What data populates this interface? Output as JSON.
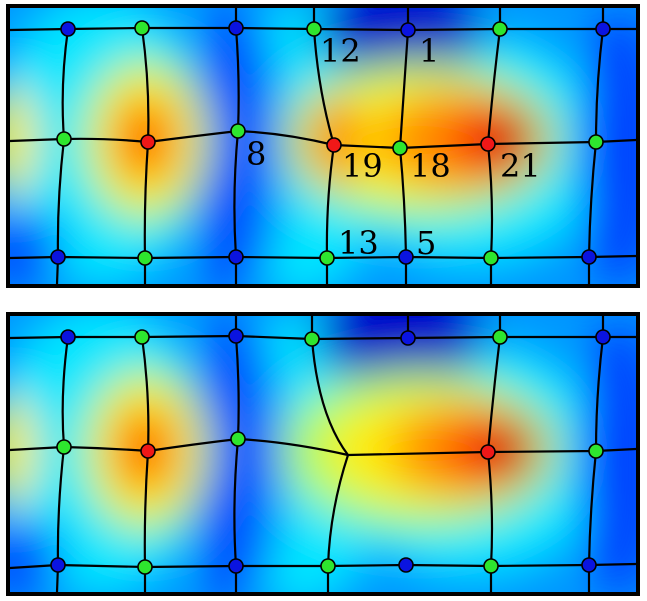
{
  "figure": {
    "panels": [
      {
        "id": "top",
        "node_labels": [
          {
            "id": "12",
            "text": "12"
          },
          {
            "id": "1",
            "text": "1"
          },
          {
            "id": "8",
            "text": "8"
          },
          {
            "id": "19",
            "text": "19"
          },
          {
            "id": "18",
            "text": "18"
          },
          {
            "id": "21",
            "text": "21"
          },
          {
            "id": "13",
            "text": "13"
          },
          {
            "id": "5",
            "text": "5"
          }
        ]
      },
      {
        "id": "bottom",
        "node_labels": []
      }
    ],
    "colors": {
      "node_blue": "#0a14e0",
      "node_green": "#2ee62e",
      "node_red": "#f01818",
      "colormap": [
        "#00008c",
        "#0000ff",
        "#0096ff",
        "#00ffff",
        "#80ff80",
        "#ffff00",
        "#ff8000",
        "#ff0000",
        "#8c0000"
      ]
    }
  }
}
